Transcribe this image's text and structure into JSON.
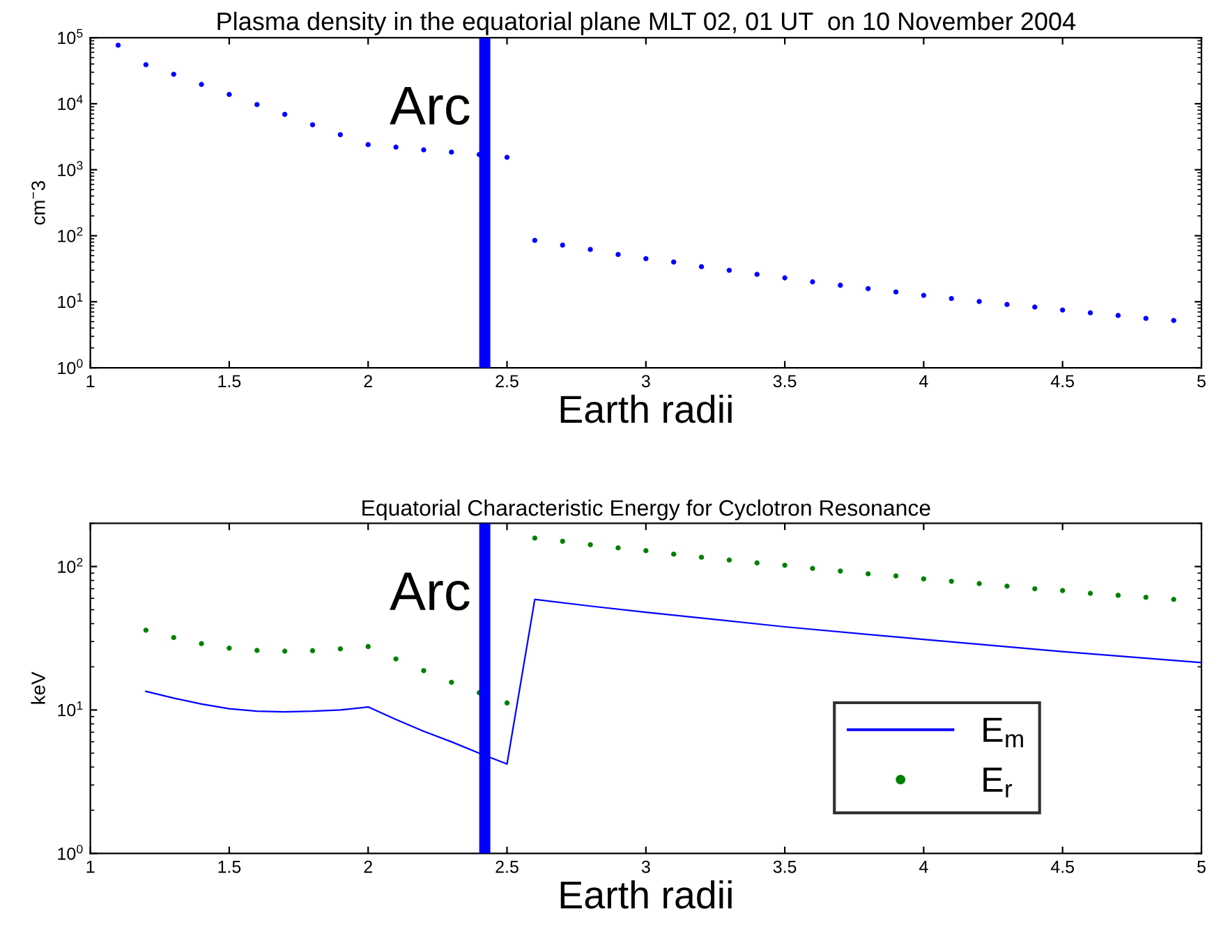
{
  "chart_data": [
    {
      "type": "scatter",
      "title": "Plasma density in the equatorial plane MLT 02, 01 UT  on 10 November 2004",
      "xlabel": "Earth radii",
      "ylabel": "cm$^{−}$3",
      "x": [
        1.1,
        1.2,
        1.3,
        1.4,
        1.5,
        1.6,
        1.7,
        1.8,
        1.9,
        2.0,
        2.1,
        2.2,
        2.3,
        2.4,
        2.5,
        2.6,
        2.7,
        2.8,
        2.9,
        3.0,
        3.1,
        3.2,
        3.3,
        3.4,
        3.5,
        3.6,
        3.7,
        3.8,
        3.9,
        4.0,
        4.1,
        4.2,
        4.3,
        4.4,
        4.5,
        4.6,
        4.7,
        4.8,
        4.9
      ],
      "series": [
        {
          "color": "#0000ff",
          "values": [
            77000,
            39000,
            28000,
            19600,
            13800,
            9700,
            6900,
            4800,
            3400,
            2400,
            2200,
            2000,
            1850,
            1700,
            1540,
            85,
            72,
            62,
            52,
            45,
            40,
            34,
            30,
            26,
            23,
            20,
            17.8,
            15.8,
            14.1,
            12.5,
            11.2,
            10.1,
            9.1,
            8.3,
            7.5,
            6.8,
            6.2,
            5.6,
            5.2
          ]
        }
      ],
      "log": "y",
      "marker": "circle",
      "grid": false,
      "legend": false,
      "xlim": [
        1,
        5
      ],
      "xticks": [
        1,
        1.5,
        2,
        2.5,
        3,
        3.5,
        4,
        4.5,
        5
      ],
      "ylim": [
        1,
        100000
      ],
      "yticks": [
        {
          "value": 1,
          "label": "10$^{0}$"
        },
        {
          "value": 10,
          "label": "10$^{1}$"
        },
        {
          "value": 100,
          "label": "10$^{2}$"
        },
        {
          "value": 1000,
          "label": "10$^{3}$"
        },
        {
          "value": 10000,
          "label": "10$^{4}$"
        },
        {
          "value": 100000,
          "label": "10$^{5}$"
        }
      ],
      "bands": [
        {
          "axis": "x",
          "from": 2.4,
          "to": 2.44,
          "label": "Arc",
          "color": "#0000ff"
        }
      ]
    },
    {
      "type": "scatter",
      "title": "Equatorial Characteristic Energy for Cyclotron Resonance",
      "xlabel": "Earth radii",
      "ylabel": "keV",
      "series": [
        {
          "name": "E$_{m}$",
          "type": "line",
          "color": "#0000ff",
          "marker": "none",
          "line_style": "solid",
          "x": [
            1.2,
            1.3,
            1.4,
            1.5,
            1.6,
            1.7,
            1.8,
            1.9,
            2.0,
            2.1,
            2.2,
            2.3,
            2.4,
            2.5,
            2.6,
            2.8,
            3.0,
            3.5,
            4.0,
            4.5,
            5.0
          ],
          "values": [
            13.5,
            12.1,
            11.0,
            10.2,
            9.8,
            9.7,
            9.8,
            10.0,
            10.5,
            8.6,
            7.1,
            6.0,
            5.0,
            4.2,
            59,
            53,
            48,
            38,
            31,
            25.5,
            21.4
          ]
        },
        {
          "name": "E$_{r}$",
          "type": "scatter",
          "color": "#008000",
          "marker": "circle",
          "x": [
            1.2,
            1.3,
            1.4,
            1.5,
            1.6,
            1.7,
            1.8,
            1.9,
            2.0,
            2.1,
            2.2,
            2.3,
            2.4,
            2.5,
            2.6,
            2.7,
            2.8,
            2.9,
            3.0,
            3.1,
            3.2,
            3.3,
            3.4,
            3.5,
            3.6,
            3.7,
            3.8,
            3.9,
            4.0,
            4.1,
            4.2,
            4.3,
            4.4,
            4.5,
            4.6,
            4.7,
            4.8,
            4.9
          ],
          "values": [
            36,
            32,
            29,
            27,
            26,
            25.7,
            25.9,
            26.7,
            27.7,
            22.7,
            18.8,
            15.6,
            13.2,
            11.2,
            158,
            150,
            142,
            135,
            129,
            122,
            116,
            111,
            106,
            102,
            97,
            93,
            89,
            86,
            82,
            79,
            76,
            73,
            70,
            68,
            65,
            63,
            61,
            59
          ]
        }
      ],
      "log": "y",
      "grid": false,
      "legend": "bottom right",
      "xlim": [
        1,
        5
      ],
      "xticks": [
        1,
        1.5,
        2,
        2.5,
        3,
        3.5,
        4,
        4.5,
        5
      ],
      "ylim": [
        1,
        200
      ],
      "yticks": [
        {
          "value": 1,
          "label": "10$^{0}$"
        },
        {
          "value": 10,
          "label": "10$^{1}$"
        },
        {
          "value": 100,
          "label": "10$^{2}$"
        }
      ],
      "bands": [
        {
          "axis": "x",
          "from": 2.4,
          "to": 2.44,
          "label": "Arc",
          "color": "#0000ff"
        }
      ]
    }
  ]
}
